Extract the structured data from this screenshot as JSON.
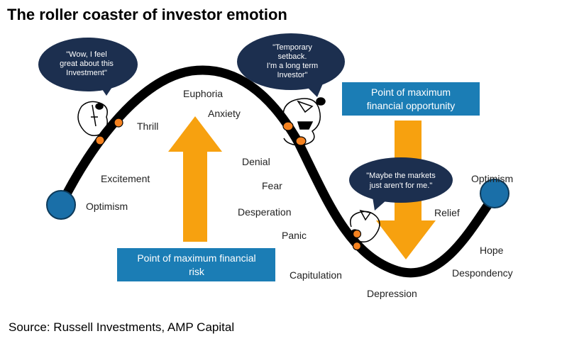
{
  "title": "The roller coaster of investor emotion",
  "source": "Source: Russell Investments, AMP Capital",
  "colors": {
    "curve": "#000000",
    "arrow": "#f7a10f",
    "box": "#1b7db5",
    "bubble": "#1c2f4f",
    "endpoint": "#1a6fa8",
    "dot": "#f58220"
  },
  "stages": [
    "Optimism",
    "Excitement",
    "Thrill",
    "Euphoria",
    "Anxiety",
    "Denial",
    "Fear",
    "Desperation",
    "Panic",
    "Capitulation",
    "Depression",
    "Despondency",
    "Hope",
    "Relief",
    "Optimism"
  ],
  "bubbles": [
    {
      "lines": [
        "\"Wow, I feel",
        "great about  this",
        "Investment\""
      ]
    },
    {
      "lines": [
        "\"Temporary",
        "setback.",
        "I'm a long term",
        "Investor\""
      ]
    },
    {
      "lines": [
        "\"Maybe the markets",
        "just aren't for me.\""
      ]
    }
  ],
  "boxes": {
    "risk": [
      "Point of maximum financial",
      "risk"
    ],
    "opportunity": [
      "Point of maximum",
      "financial opportunity"
    ]
  }
}
